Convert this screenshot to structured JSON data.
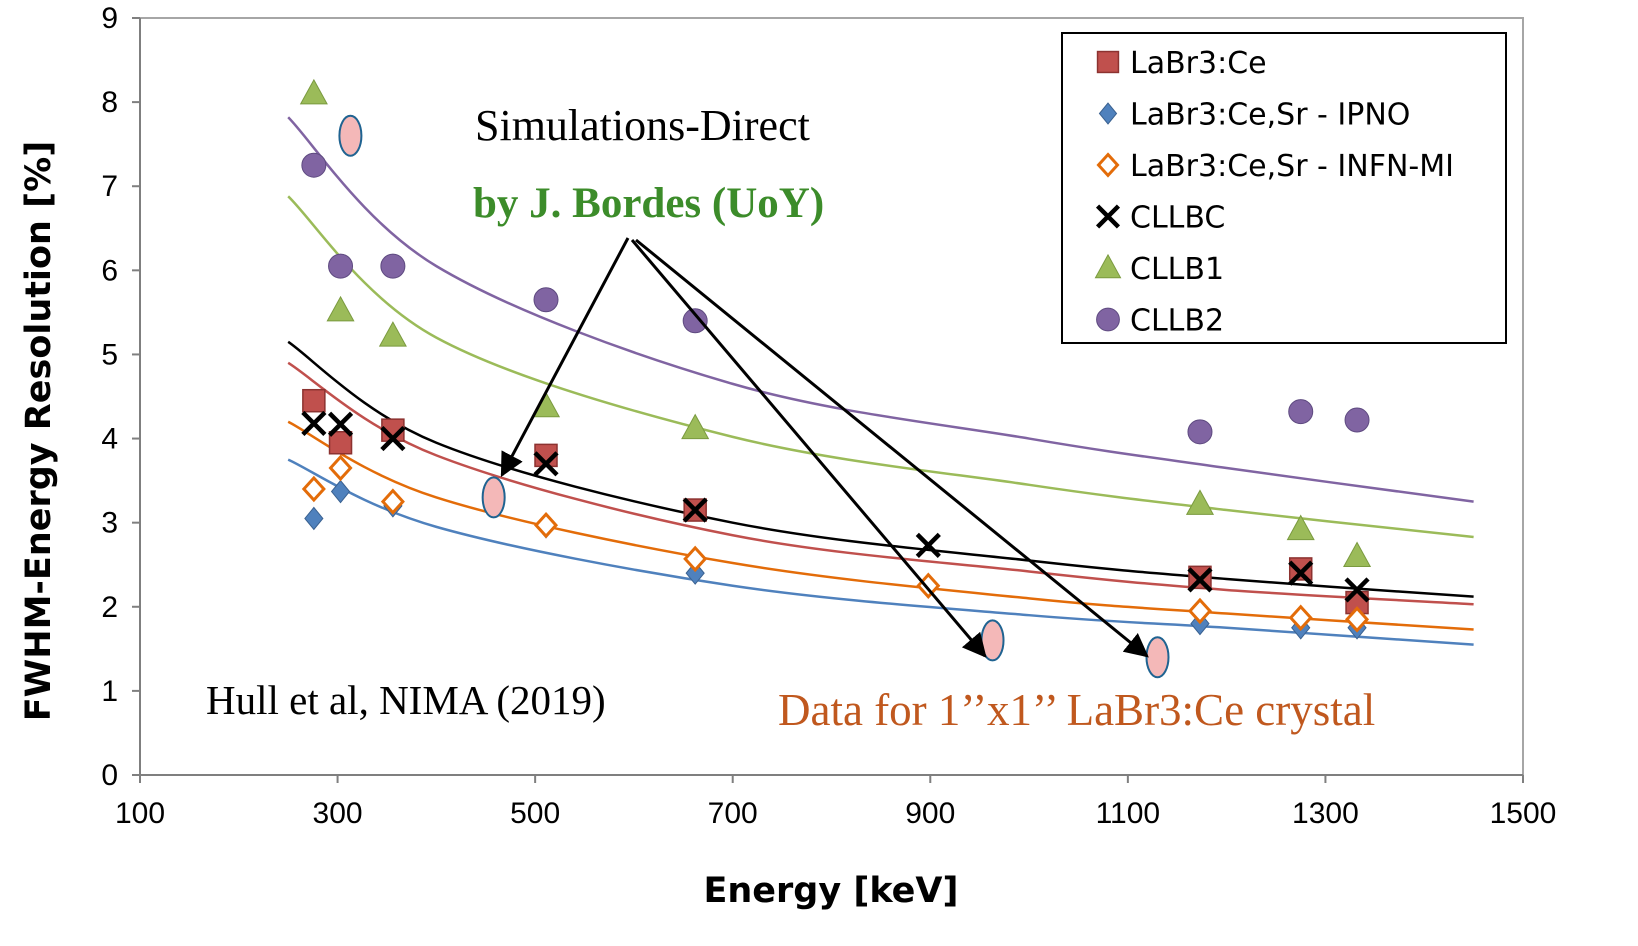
{
  "chart_data": {
    "type": "scatter",
    "xlabel": "Energy [keV]",
    "ylabel": "FWHM-Energy Resolution [%]",
    "xlim": [
      100,
      1500
    ],
    "ylim": [
      0,
      9
    ],
    "xticks": [
      "100",
      "300",
      "500",
      "700",
      "900",
      "1100",
      "1300",
      "1500"
    ],
    "yticks": [
      "0",
      "1",
      "2",
      "3",
      "4",
      "5",
      "6",
      "7",
      "8",
      "9"
    ],
    "grid": false,
    "legend_position": "top-right",
    "series": [
      {
        "name": "LaBr3:Ce",
        "marker": "square",
        "color": "#c0504d",
        "points": [
          [
            276,
            4.45
          ],
          [
            303,
            3.95
          ],
          [
            356,
            4.1
          ],
          [
            511,
            3.8
          ],
          [
            662,
            3.15
          ],
          [
            1173,
            2.35
          ],
          [
            1275,
            2.45
          ],
          [
            1332,
            2.05
          ]
        ]
      },
      {
        "name": "LaBr3:Ce,Sr - IPNO",
        "marker": "diamond",
        "color": "#4f81bd",
        "points": [
          [
            276,
            3.05
          ],
          [
            303,
            3.37
          ],
          [
            356,
            3.2
          ],
          [
            511,
            2.95
          ],
          [
            662,
            2.4
          ],
          [
            1173,
            1.8
          ],
          [
            1275,
            1.75
          ],
          [
            1332,
            1.75
          ]
        ]
      },
      {
        "name": "LaBr3:Ce,Sr - INFN-MI",
        "marker": "open-diamond",
        "color": "#e36c09",
        "points": [
          [
            276,
            3.4
          ],
          [
            303,
            3.65
          ],
          [
            356,
            3.25
          ],
          [
            511,
            2.97
          ],
          [
            662,
            2.57
          ],
          [
            898,
            2.25
          ],
          [
            1173,
            1.95
          ],
          [
            1275,
            1.87
          ],
          [
            1332,
            1.85
          ]
        ]
      },
      {
        "name": "CLLBC",
        "marker": "x",
        "color": "#000000",
        "points": [
          [
            276,
            4.18
          ],
          [
            303,
            4.17
          ],
          [
            356,
            4.0
          ],
          [
            511,
            3.7
          ],
          [
            662,
            3.15
          ],
          [
            898,
            2.73
          ],
          [
            1173,
            2.32
          ],
          [
            1275,
            2.4
          ],
          [
            1332,
            2.2
          ]
        ]
      },
      {
        "name": "CLLB1",
        "marker": "triangle",
        "color": "#9bbb59",
        "points": [
          [
            276,
            8.1
          ],
          [
            303,
            5.52
          ],
          [
            356,
            5.22
          ],
          [
            511,
            4.38
          ],
          [
            662,
            4.12
          ],
          [
            1173,
            3.22
          ],
          [
            1275,
            2.92
          ],
          [
            1332,
            2.6
          ]
        ]
      },
      {
        "name": "CLLB2",
        "marker": "circle",
        "color": "#8064a2",
        "points": [
          [
            276,
            7.25
          ],
          [
            303,
            6.05
          ],
          [
            356,
            6.05
          ],
          [
            511,
            5.65
          ],
          [
            662,
            5.4
          ],
          [
            1173,
            4.08
          ],
          [
            1275,
            4.32
          ],
          [
            1332,
            4.22
          ]
        ]
      }
    ],
    "fits": [
      {
        "series": "LaBr3:Ce",
        "color": "#c0504d",
        "points": [
          [
            250,
            4.9
          ],
          [
            400,
            3.8
          ],
          [
            700,
            2.85
          ],
          [
            1000,
            2.42
          ],
          [
            1200,
            2.2
          ],
          [
            1450,
            2.03
          ]
        ]
      },
      {
        "series": "LaBr3:Ce,Sr - IPNO",
        "color": "#4f81bd",
        "points": [
          [
            250,
            3.75
          ],
          [
            400,
            2.95
          ],
          [
            700,
            2.25
          ],
          [
            1000,
            1.9
          ],
          [
            1200,
            1.75
          ],
          [
            1450,
            1.55
          ]
        ]
      },
      {
        "series": "LaBr3:Ce,Sr - INFN-MI",
        "color": "#e36c09",
        "points": [
          [
            250,
            4.2
          ],
          [
            400,
            3.3
          ],
          [
            700,
            2.52
          ],
          [
            1000,
            2.1
          ],
          [
            1200,
            1.92
          ],
          [
            1450,
            1.73
          ]
        ]
      },
      {
        "series": "CLLBC",
        "color": "#000000",
        "points": [
          [
            250,
            5.15
          ],
          [
            400,
            3.95
          ],
          [
            700,
            3.0
          ],
          [
            1000,
            2.55
          ],
          [
            1200,
            2.33
          ],
          [
            1450,
            2.12
          ]
        ]
      },
      {
        "series": "CLLB1",
        "color": "#9bbb59",
        "points": [
          [
            250,
            6.88
          ],
          [
            400,
            5.2
          ],
          [
            700,
            4.02
          ],
          [
            1000,
            3.45
          ],
          [
            1200,
            3.15
          ],
          [
            1450,
            2.83
          ]
        ]
      },
      {
        "series": "CLLB2",
        "color": "#8064a2",
        "points": [
          [
            250,
            7.82
          ],
          [
            400,
            6.05
          ],
          [
            700,
            4.65
          ],
          [
            1000,
            4.0
          ],
          [
            1200,
            3.65
          ],
          [
            1450,
            3.25
          ]
        ]
      }
    ],
    "simulation_points": {
      "color": "#f4b8b8",
      "stroke": "#1f6391",
      "points": [
        [
          313,
          7.6
        ],
        [
          458,
          3.3
        ],
        [
          963,
          1.6
        ],
        [
          1130,
          1.4
        ]
      ]
    },
    "annotations": {
      "simulations_line1": "Simulations-Direct",
      "simulations_line2": "by J. Bordes (UoY)",
      "simulations_line2_color": "#3c8c2a",
      "reference": "Hull et al, NIMA (2019)",
      "data_note": "Data for 1’’x1’’ LaBr3:Ce crystal",
      "data_note_color": "#c0581e"
    }
  }
}
